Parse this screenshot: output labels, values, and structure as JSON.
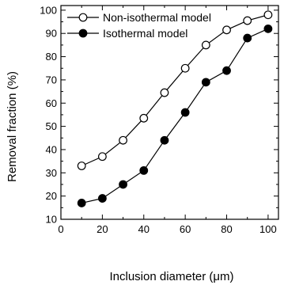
{
  "chart_data": {
    "type": "line",
    "xlabel": "Inclusion diameter (μm)",
    "ylabel": "Removal fraction (%)",
    "xlim": [
      0,
      105
    ],
    "ylim": [
      10,
      102
    ],
    "x_ticks": [
      0,
      20,
      40,
      60,
      80,
      100
    ],
    "y_ticks": [
      10,
      20,
      30,
      40,
      50,
      60,
      70,
      80,
      90,
      100
    ],
    "legend_position": "top-left",
    "grid": false,
    "series": [
      {
        "name": "Non-isothermal model",
        "marker": "open-circle",
        "color": "#000000",
        "x": [
          10,
          20,
          30,
          40,
          50,
          60,
          70,
          80,
          90,
          100
        ],
        "values": [
          33,
          37,
          44,
          53.5,
          64.5,
          75,
          85,
          91.5,
          95.5,
          98
        ]
      },
      {
        "name": "Isothermal model",
        "marker": "filled-circle",
        "color": "#000000",
        "x": [
          10,
          20,
          30,
          40,
          50,
          60,
          70,
          80,
          90,
          100
        ],
        "values": [
          17,
          19,
          25,
          31,
          44,
          56,
          69,
          74,
          88,
          92
        ]
      }
    ]
  }
}
